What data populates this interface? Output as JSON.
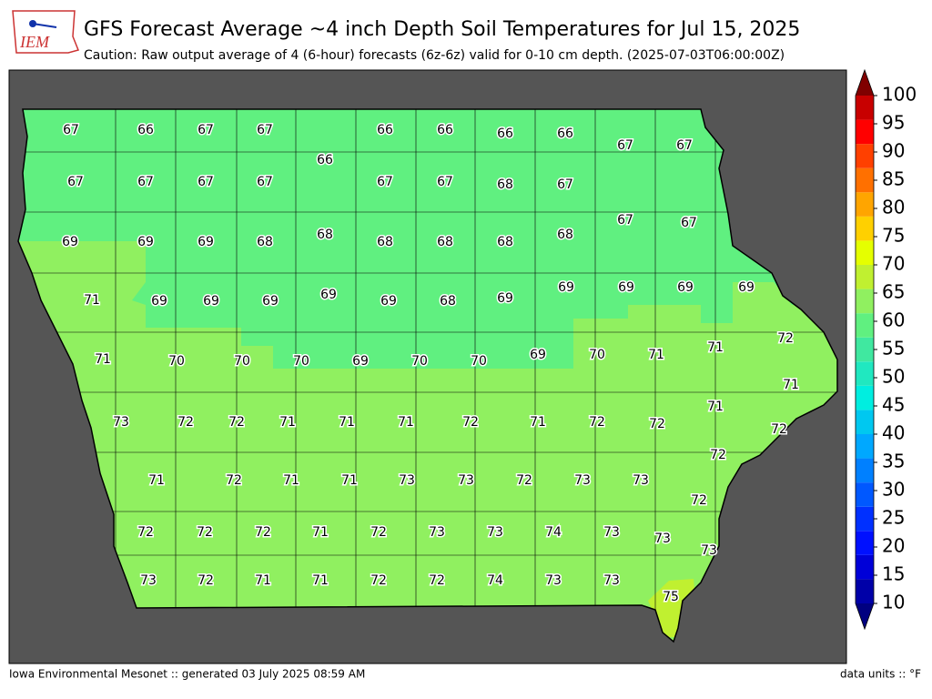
{
  "title": "GFS Forecast Average ~4 inch Depth Soil Temperatures for Jul 15, 2025",
  "subtitle": "Caution: Raw output average of 4 (6-hour) forecasts (6z-6z) valid for 0-10 cm depth. (2025-07-03T06:00:00Z)",
  "logo": "IEM",
  "footer_left": "Iowa Environmental Mesonet :: generated 03 July 2025 08:59 AM",
  "footer_right": "data units :: °F",
  "counties": {
    "values": [
      67,
      66,
      67,
      67,
      66,
      66,
      66,
      66,
      66,
      67,
      67,
      67,
      67,
      67,
      67,
      67,
      67,
      68,
      67,
      67,
      67,
      69,
      69,
      69,
      68,
      68,
      68,
      68,
      68,
      68,
      71,
      69,
      69,
      69,
      69,
      69,
      68,
      69,
      69,
      69,
      69,
      69,
      71,
      70,
      70,
      70,
      69,
      70,
      70,
      69,
      70,
      71,
      71,
      72,
      71,
      73,
      72,
      72,
      71,
      71,
      71,
      72,
      71,
      72,
      72,
      71,
      72,
      71,
      72,
      71,
      71,
      73,
      73,
      72,
      73,
      73,
      72,
      72,
      72,
      72,
      72,
      71,
      72,
      73,
      73,
      74,
      73,
      73,
      73,
      73,
      72,
      71,
      71,
      72,
      72,
      74,
      73,
      73,
      75
    ]
  },
  "colorbar": {
    "ticks": [
      10,
      15,
      20,
      25,
      30,
      35,
      40,
      45,
      50,
      55,
      60,
      65,
      70,
      75,
      80,
      85,
      90,
      95,
      100
    ],
    "colors": [
      "#0000a8",
      "#0000d8",
      "#0010ff",
      "#0030ff",
      "#0058ff",
      "#0080ff",
      "#00a8ff",
      "#00c8f0",
      "#00eee0",
      "#20e8c0",
      "#40e8a0",
      "#60f080",
      "#90f060",
      "#c0f030",
      "#e5ff00",
      "#ffd000",
      "#ffa500",
      "#ff7000",
      "#ff4000",
      "#ff0000",
      "#c80000"
    ],
    "under": "#000080",
    "over": "#800000"
  }
}
